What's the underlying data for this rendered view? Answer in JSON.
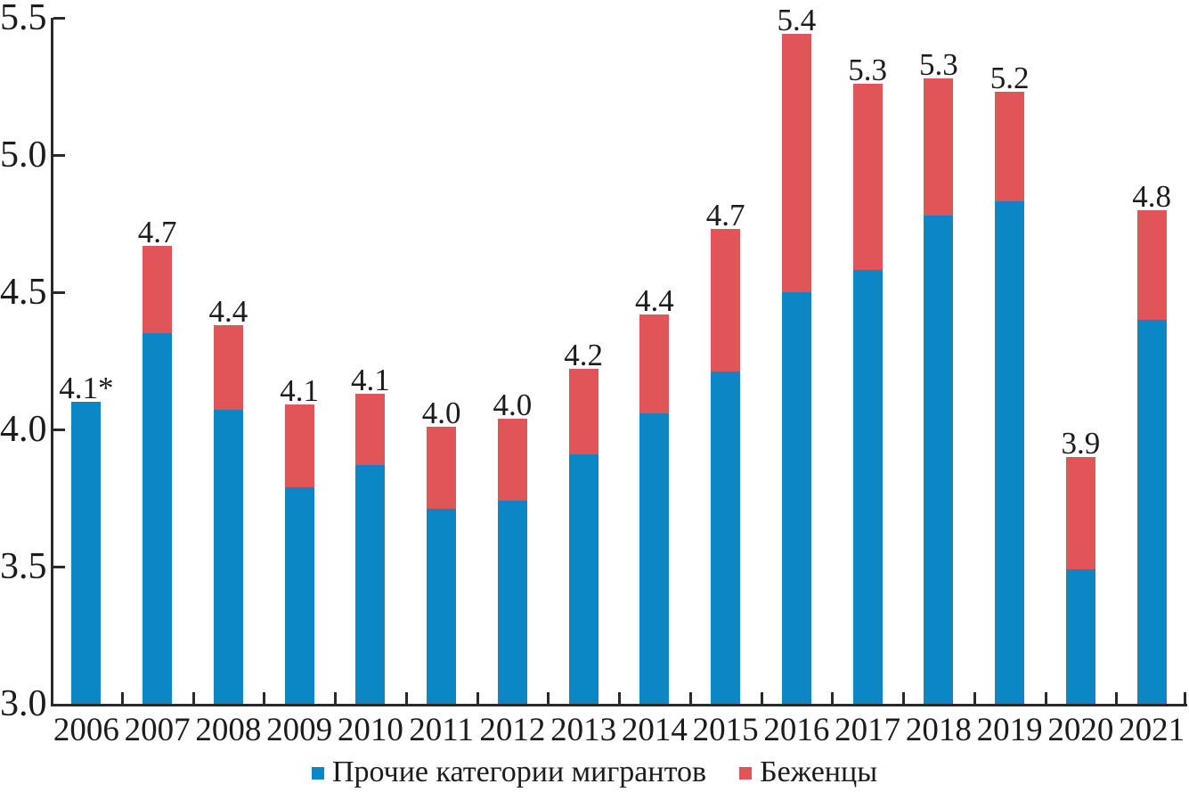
{
  "chart_data": {
    "type": "bar",
    "stacked": true,
    "title": "",
    "categories": [
      "2006",
      "2007",
      "2008",
      "2009",
      "2010",
      "2011",
      "2012",
      "2013",
      "2014",
      "2015",
      "2016",
      "2017",
      "2018",
      "2019",
      "2020",
      "2021"
    ],
    "series": [
      {
        "name": "Прочие категории мигрантов",
        "color": "#0b87c6",
        "values": [
          4.1,
          4.35,
          4.07,
          3.79,
          3.87,
          3.71,
          3.74,
          3.91,
          4.06,
          4.21,
          4.5,
          4.58,
          4.78,
          4.83,
          3.49,
          4.4
        ]
      },
      {
        "name": "Беженцы",
        "color": "#e25556",
        "values": [
          0,
          0.32,
          0.31,
          0.3,
          0.26,
          0.3,
          0.3,
          0.31,
          0.36,
          0.52,
          0.94,
          0.68,
          0.5,
          0.4,
          0.41,
          0.4
        ]
      }
    ],
    "total_labels": [
      "4.1*",
      "4.7",
      "4.4",
      "4.1",
      "4.1",
      "4.0",
      "4.0",
      "4.2",
      "4.4",
      "4.7",
      "5.4",
      "5.3",
      "5.3",
      "5.2",
      "3.9",
      "4.8"
    ],
    "y_axis": {
      "min": 3.0,
      "max": 5.5,
      "ticks": [
        "3.0",
        "3.5",
        "4.0",
        "4.5",
        "5.0",
        "5.5"
      ]
    },
    "x_axis": {
      "label": ""
    },
    "grid": false,
    "legend_position": "bottom"
  },
  "colors": {
    "axis": "#2b2a29",
    "text": "#1d1b1c",
    "background": "#ffffff",
    "series_other": "#0b87c6",
    "series_refugees": "#e25556"
  }
}
